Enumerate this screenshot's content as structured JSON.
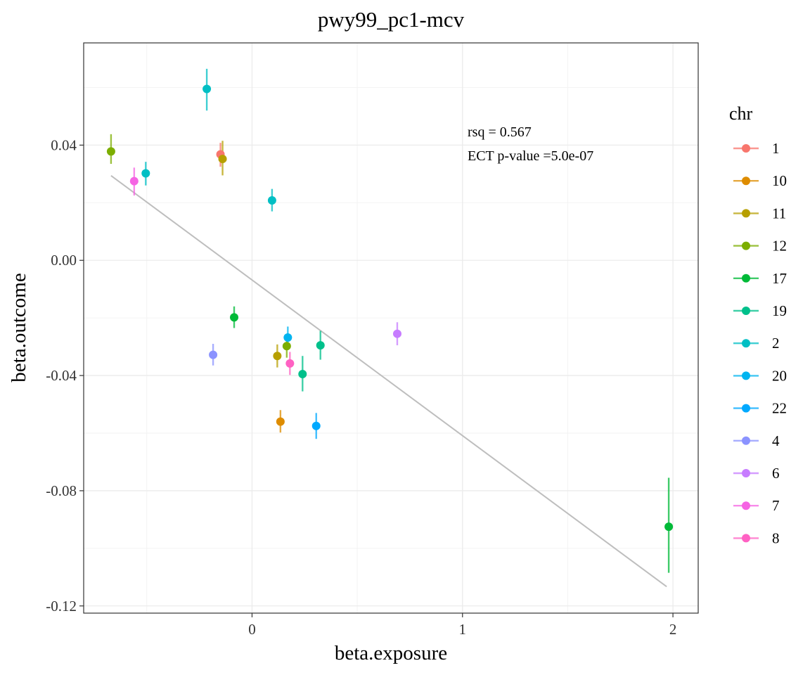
{
  "chart_data": {
    "type": "scatter",
    "title": "pwy99_pc1-mcv",
    "xlabel": "beta.exposure",
    "ylabel": "beta.outcome",
    "xlim": [
      -0.8,
      2.12
    ],
    "ylim": [
      -0.1225,
      0.0755
    ],
    "x_ticks": [
      0,
      1,
      2
    ],
    "x_tick_labels": [
      "0",
      "1",
      "2"
    ],
    "y_ticks": [
      0.04,
      0.0,
      -0.04,
      -0.08,
      -0.12
    ],
    "y_tick_labels": [
      "0.04",
      "0.00",
      "-0.04",
      "-0.08",
      "-0.12"
    ],
    "grid": true,
    "legend": {
      "title": "chr",
      "placement": "right",
      "entries": [
        {
          "label": "1",
          "color": "#F8766D"
        },
        {
          "label": "10",
          "color": "#DE8C00"
        },
        {
          "label": "11",
          "color": "#B79F00"
        },
        {
          "label": "12",
          "color": "#7CAE00"
        },
        {
          "label": "17",
          "color": "#00BA38"
        },
        {
          "label": "19",
          "color": "#00C08B"
        },
        {
          "label": "2",
          "color": "#00BFC4"
        },
        {
          "label": "20",
          "color": "#00B4F0"
        },
        {
          "label": "22",
          "color": "#00A9FF"
        },
        {
          "label": "4",
          "color": "#8B93FF"
        },
        {
          "label": "6",
          "color": "#C77CFF"
        },
        {
          "label": "7",
          "color": "#F564E3"
        },
        {
          "label": "8",
          "color": "#FF61C3"
        }
      ]
    },
    "annotations": [
      "rsq =  0.567",
      "ECT p-value =5.0e-07"
    ],
    "fit_line": {
      "x": [
        -0.67,
        1.97
      ],
      "y": [
        0.0294,
        -0.1133
      ],
      "color": "#BEBEBE"
    },
    "points": [
      {
        "chr": "12",
        "x": -0.67,
        "y": 0.0378,
        "lo": 0.0335,
        "hi": 0.0438
      },
      {
        "chr": "7",
        "x": -0.56,
        "y": 0.0275,
        "lo": 0.0225,
        "hi": 0.0322
      },
      {
        "chr": "2",
        "x": -0.505,
        "y": 0.0302,
        "lo": 0.026,
        "hi": 0.0342
      },
      {
        "chr": "2",
        "x": -0.215,
        "y": 0.0595,
        "lo": 0.052,
        "hi": 0.0665
      },
      {
        "chr": "4",
        "x": -0.185,
        "y": -0.0328,
        "lo": -0.0365,
        "hi": -0.029
      },
      {
        "chr": "1",
        "x": -0.15,
        "y": 0.0368,
        "lo": 0.0325,
        "hi": 0.0408
      },
      {
        "chr": "11",
        "x": -0.14,
        "y": 0.0352,
        "lo": 0.0295,
        "hi": 0.0415
      },
      {
        "chr": "17",
        "x": -0.085,
        "y": -0.0198,
        "lo": -0.0235,
        "hi": -0.016
      },
      {
        "chr": "2",
        "x": 0.095,
        "y": 0.0208,
        "lo": 0.017,
        "hi": 0.0248
      },
      {
        "chr": "11",
        "x": 0.12,
        "y": -0.0332,
        "lo": -0.0372,
        "hi": -0.0292
      },
      {
        "chr": "10",
        "x": 0.135,
        "y": -0.056,
        "lo": -0.0598,
        "hi": -0.052
      },
      {
        "chr": "12",
        "x": 0.165,
        "y": -0.0298,
        "lo": -0.0338,
        "hi": -0.0258
      },
      {
        "chr": "20",
        "x": 0.17,
        "y": -0.0268,
        "lo": -0.0305,
        "hi": -0.023
      },
      {
        "chr": "8",
        "x": 0.18,
        "y": -0.0358,
        "lo": -0.0398,
        "hi": -0.0318
      },
      {
        "chr": "19",
        "x": 0.24,
        "y": -0.0395,
        "lo": -0.0455,
        "hi": -0.0332
      },
      {
        "chr": "22",
        "x": 0.305,
        "y": -0.0575,
        "lo": -0.062,
        "hi": -0.053
      },
      {
        "chr": "19",
        "x": 0.325,
        "y": -0.0295,
        "lo": -0.0345,
        "hi": -0.0245
      },
      {
        "chr": "6",
        "x": 0.69,
        "y": -0.0255,
        "lo": -0.0295,
        "hi": -0.0215
      },
      {
        "chr": "17",
        "x": 1.98,
        "y": -0.0925,
        "lo": -0.1085,
        "hi": -0.0755
      }
    ]
  }
}
